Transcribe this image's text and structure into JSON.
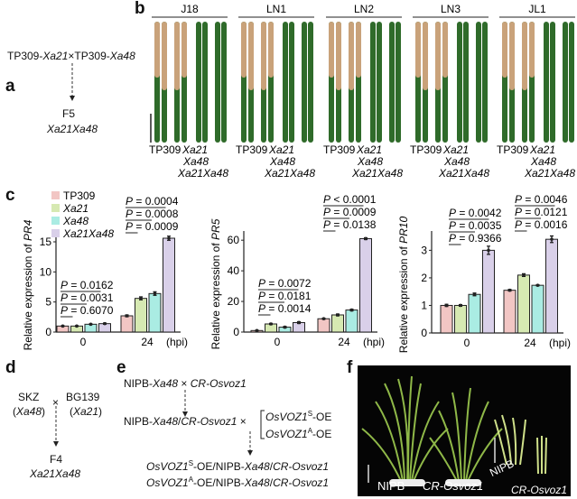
{
  "panels": {
    "a": {
      "letter": "a",
      "cross": [
        "TP309-",
        "Xa21",
        "×TP309-",
        "Xa48"
      ],
      "gen": "F5",
      "genotype": "Xa21Xa48"
    },
    "b": {
      "letter": "b",
      "strains": [
        "J18",
        "LN1",
        "LN2",
        "LN3",
        "JL1"
      ],
      "lines": [
        "TP309",
        "Xa21",
        "Xa48",
        "Xa21Xa48"
      ]
    },
    "c": {
      "letter": "c"
    },
    "d": {
      "letter": "d",
      "p1": "SKZ",
      "p1_gene": [
        "(",
        "Xa48",
        ")"
      ],
      "cross": "×",
      "p2": "BG139",
      "p2_gene": [
        "(",
        "Xa21",
        ")"
      ],
      "gen": "F4",
      "genotype": "Xa21Xa48"
    },
    "e": {
      "letter": "e",
      "row1": [
        "NIPB-",
        "Xa48",
        " × ",
        "CR-Osvoz1"
      ],
      "row2": [
        "NIPB-",
        "Xa48",
        "/",
        "CR-Osvoz1",
        " ×"
      ],
      "oe1": [
        "OsVOZ1",
        "S",
        "-OE"
      ],
      "oe2": [
        "OsVOZ1",
        "A",
        "-OE"
      ],
      "res1": [
        "OsVOZ1",
        "S",
        "-OE/NIPB-",
        "Xa48",
        "/",
        "CR-Osvoz1"
      ],
      "res2": [
        "OsVOZ1",
        "A",
        "-OE/NIPB-",
        "Xa48",
        "/",
        "CR-Osvoz1"
      ]
    },
    "f": {
      "letter": "f",
      "label1": "NIPB",
      "label2": "CR-Osvoz1",
      "label3": "NIPB",
      "label4": "CR-Osvoz1"
    }
  },
  "colors": {
    "TP309": "#f2c6c4",
    "Xa21": "#d6e9b2",
    "Xa48": "#aaece3",
    "Xa21Xa48": "#d9d0e9",
    "leaf_green": "#2f6b2a",
    "leaf_lesion": "#c9a27a"
  },
  "chart_data": [
    {
      "type": "bar",
      "ylabel_prefix": "Relative expression of ",
      "ylabel_gene": "PR4",
      "categories": [
        "0",
        "24"
      ],
      "xunit": "(hpi)",
      "yticks": [
        0,
        5,
        10,
        15
      ],
      "ylim": [
        0,
        16.5
      ],
      "series": [
        {
          "name": "TP309",
          "values": [
            1.0,
            2.7
          ]
        },
        {
          "name": "Xa21",
          "values": [
            1.0,
            5.6
          ]
        },
        {
          "name": "Xa48",
          "values": [
            1.3,
            6.4
          ]
        },
        {
          "name": "Xa21Xa48",
          "values": [
            1.4,
            15.6
          ]
        }
      ],
      "errors": [
        [
          0.05,
          0.15
        ],
        [
          0.05,
          0.25
        ],
        [
          0.05,
          0.3
        ],
        [
          0.1,
          0.35
        ]
      ],
      "pvalues": [
        [
          "P = 0.0162",
          "P = 0.0031",
          "P = 0.6070"
        ],
        [
          "P = 0.0004",
          "P = 0.0008",
          "P = 0.0009"
        ]
      ],
      "legend": [
        "TP309",
        "Xa21",
        "Xa48",
        "Xa21Xa48"
      ]
    },
    {
      "type": "bar",
      "ylabel_prefix": "Relative expression of ",
      "ylabel_gene": "PR5",
      "categories": [
        "0",
        "24"
      ],
      "xunit": "(hpi)",
      "yticks": [
        0,
        20,
        40,
        60
      ],
      "ylim": [
        0,
        66
      ],
      "series": [
        {
          "name": "TP309",
          "values": [
            1.0,
            8.7
          ]
        },
        {
          "name": "Xa21",
          "values": [
            5.3,
            11.2
          ]
        },
        {
          "name": "Xa48",
          "values": [
            3.2,
            14.4
          ]
        },
        {
          "name": "Xa21Xa48",
          "values": [
            6.2,
            61.0
          ]
        }
      ],
      "errors": [
        [
          0.2,
          0.3
        ],
        [
          0.4,
          0.6
        ],
        [
          0.5,
          0.6
        ],
        [
          0.6,
          0.6
        ]
      ],
      "pvalues": [
        [
          "P = 0.0072",
          "P = 0.0181",
          "P = 0.0014"
        ],
        [
          "P < 0.0001",
          "P = 0.0009",
          "P = 0.0138"
        ]
      ]
    },
    {
      "type": "bar",
      "ylabel_prefix": "Relative expression of ",
      "ylabel_gene": "PR10",
      "categories": [
        "0",
        "24"
      ],
      "xunit": "(hpi)",
      "yticks": [
        0,
        1,
        2,
        3
      ],
      "ylim": [
        0,
        3.7
      ],
      "series": [
        {
          "name": "TP309",
          "values": [
            1.0,
            1.55
          ]
        },
        {
          "name": "Xa21",
          "values": [
            1.0,
            2.1
          ]
        },
        {
          "name": "Xa48",
          "values": [
            1.4,
            1.73
          ]
        },
        {
          "name": "Xa21Xa48",
          "values": [
            3.0,
            3.4
          ]
        }
      ],
      "errors": [
        [
          0.04,
          0.03
        ],
        [
          0.03,
          0.05
        ],
        [
          0.05,
          0.02
        ],
        [
          0.15,
          0.12
        ]
      ],
      "pvalues": [
        [
          "P = 0.0042",
          "P = 0.0035",
          "P = 0.9366"
        ],
        [
          "P = 0.0046",
          "P = 0.0121",
          "P = 0.0016"
        ]
      ]
    }
  ]
}
